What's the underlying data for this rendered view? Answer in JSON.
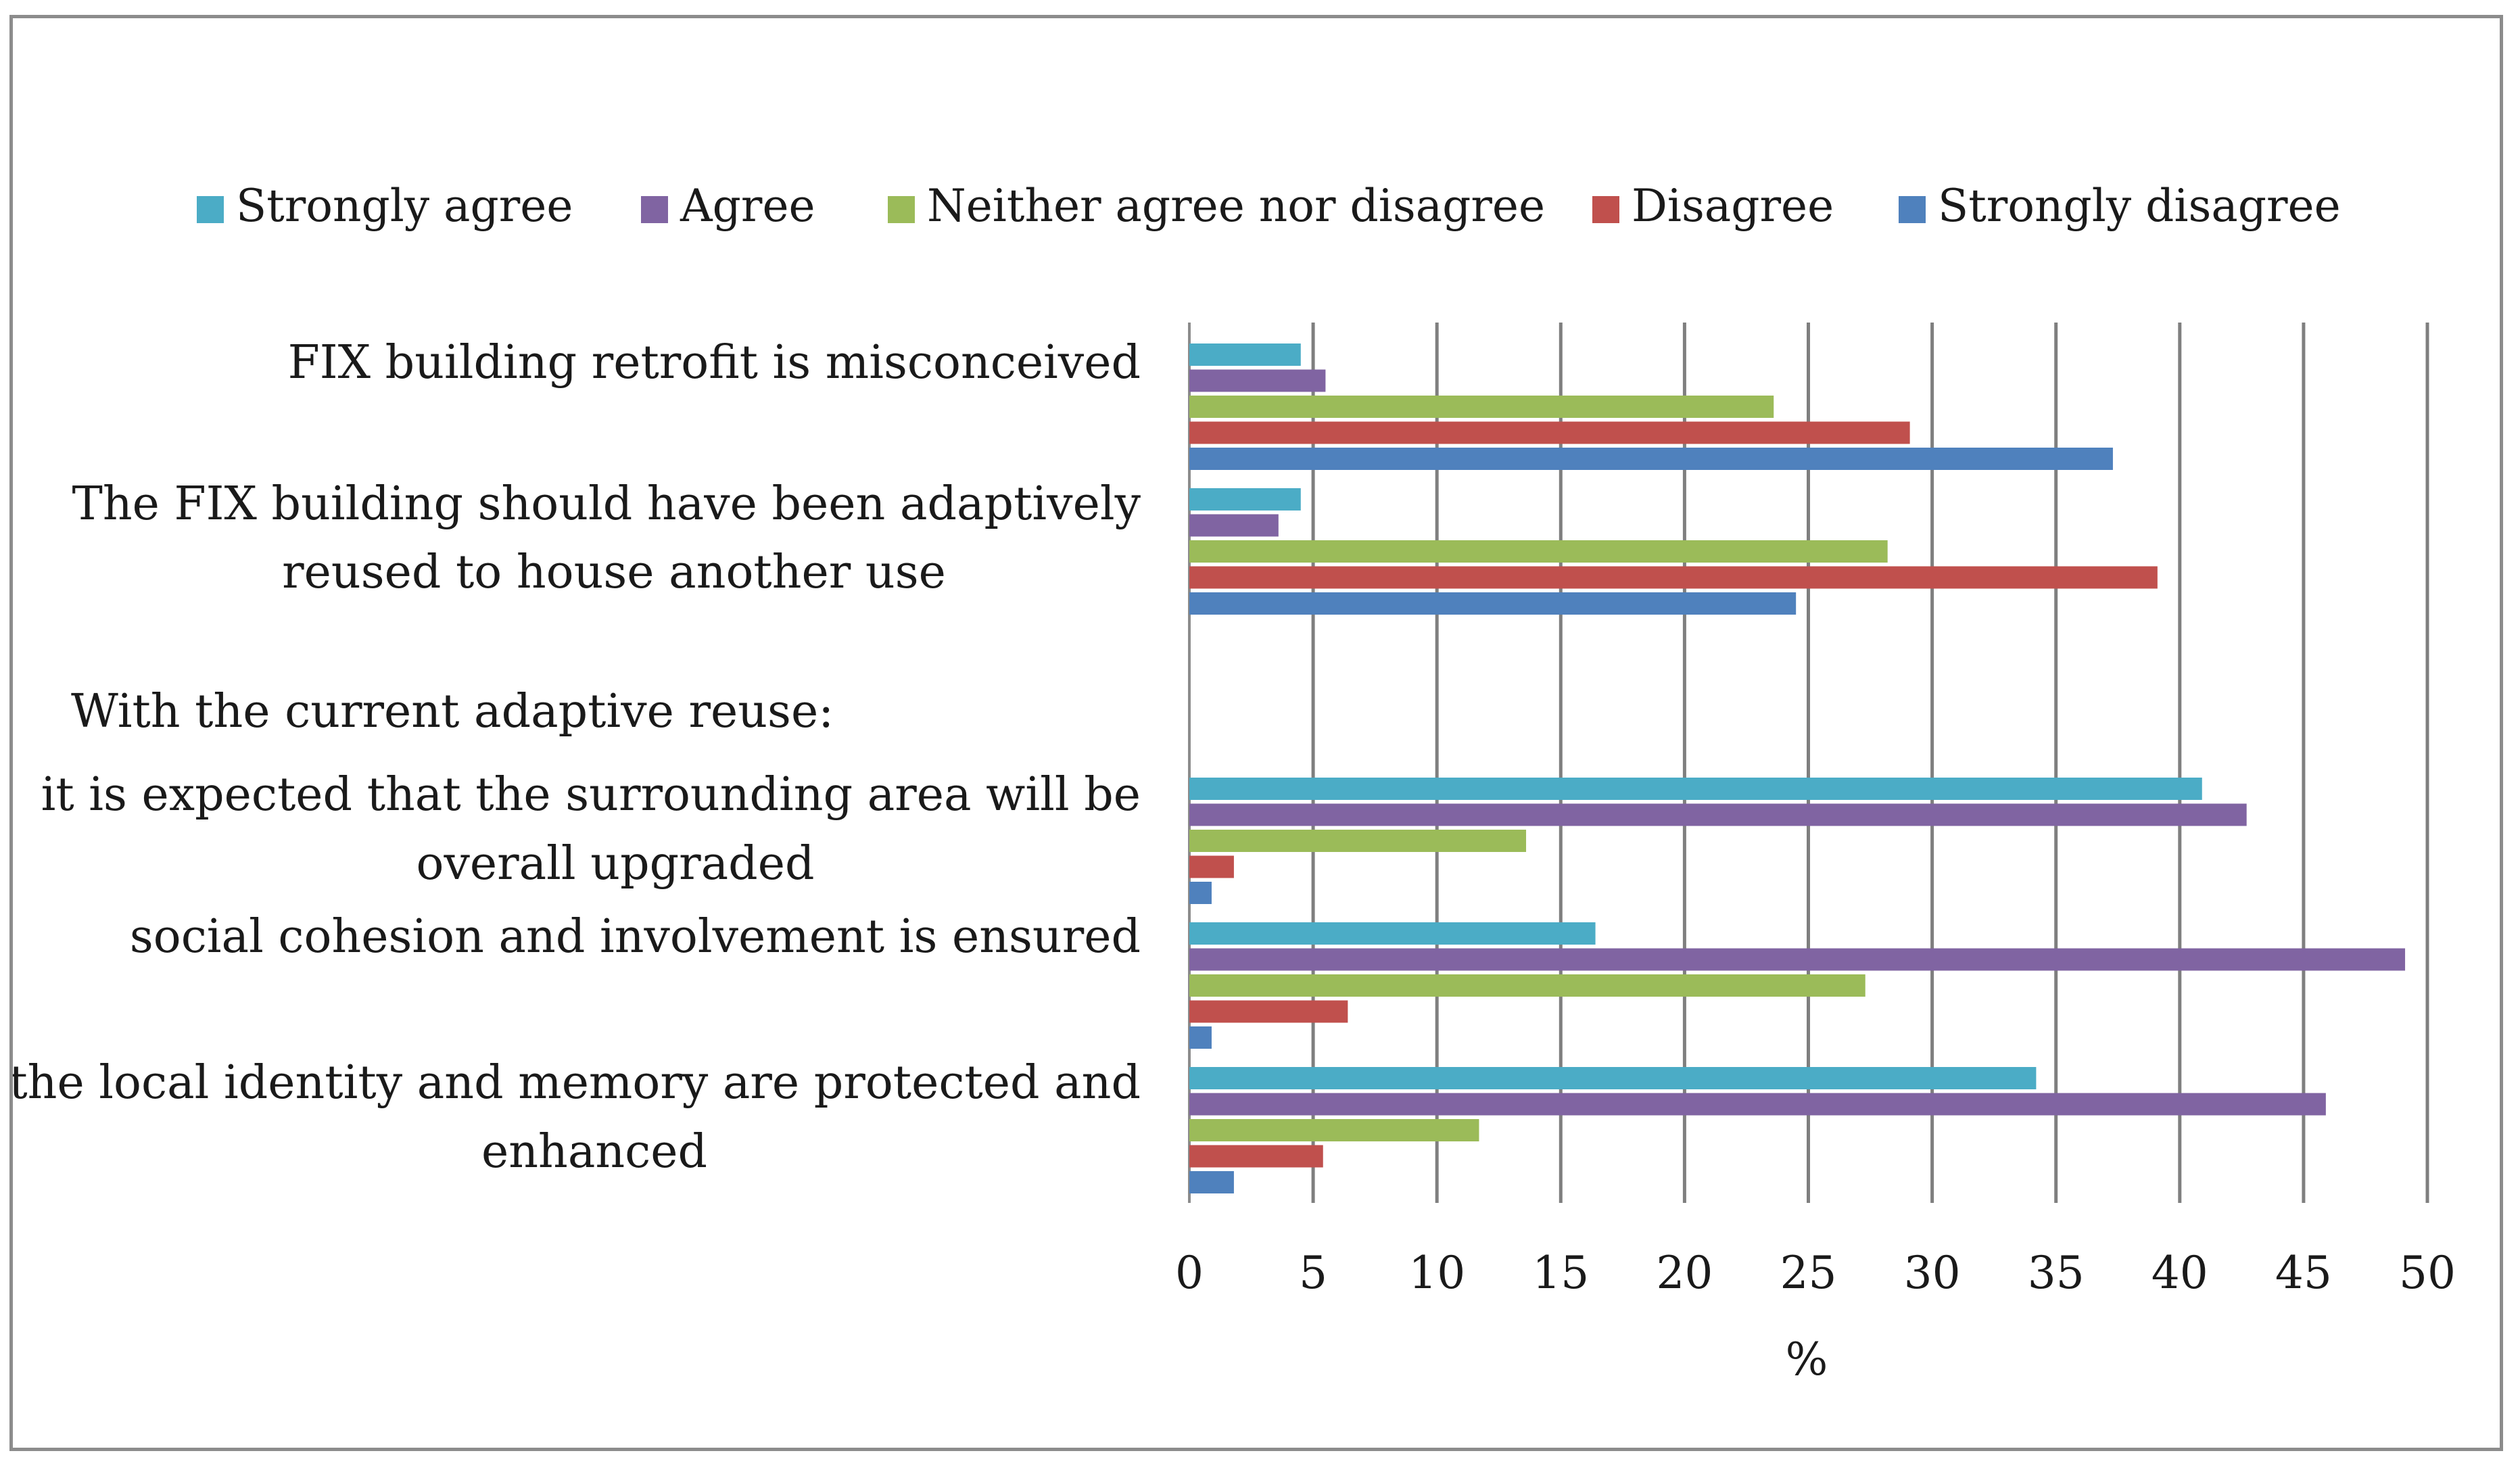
{
  "chart_data": {
    "type": "bar",
    "orientation": "horizontal",
    "title": "",
    "xlabel": "%",
    "ylabel": "",
    "xlim": [
      0,
      50
    ],
    "xticks": [
      "0",
      "5",
      "10",
      "15",
      "20",
      "25",
      "30",
      "35",
      "40",
      "45",
      "50"
    ],
    "grid": true,
    "legend_position": "top",
    "section_header": "With the current adaptive reuse:",
    "categories": [
      [
        "FIX building retrofit is misconceived"
      ],
      [
        "The FIX building should have been adaptively",
        "reused to house another use"
      ],
      [
        "it is expected that the surrounding area will be",
        "overall upgraded"
      ],
      [
        "social cohesion and involvement is ensured"
      ],
      [
        "the local identity and memory are protected and",
        "enhanced"
      ]
    ],
    "series": [
      {
        "name": "Strongly agree",
        "color": "#4bacc6",
        "values": [
          4.5,
          4.5,
          40.9,
          16.4,
          34.2
        ]
      },
      {
        "name": "Agree",
        "color": "#8064a2",
        "values": [
          5.5,
          3.6,
          42.7,
          49.1,
          45.9
        ]
      },
      {
        "name": "Neither agree nor disagree",
        "color": "#9bbb59",
        "values": [
          23.6,
          28.2,
          13.6,
          27.3,
          11.7
        ]
      },
      {
        "name": "Disagree",
        "color": "#c0504d",
        "values": [
          29.1,
          39.1,
          1.8,
          6.4,
          5.4
        ]
      },
      {
        "name": "Strongly disagree",
        "color": "#4f81bd",
        "values": [
          37.3,
          24.5,
          0.9,
          0.9,
          1.8
        ]
      }
    ]
  }
}
